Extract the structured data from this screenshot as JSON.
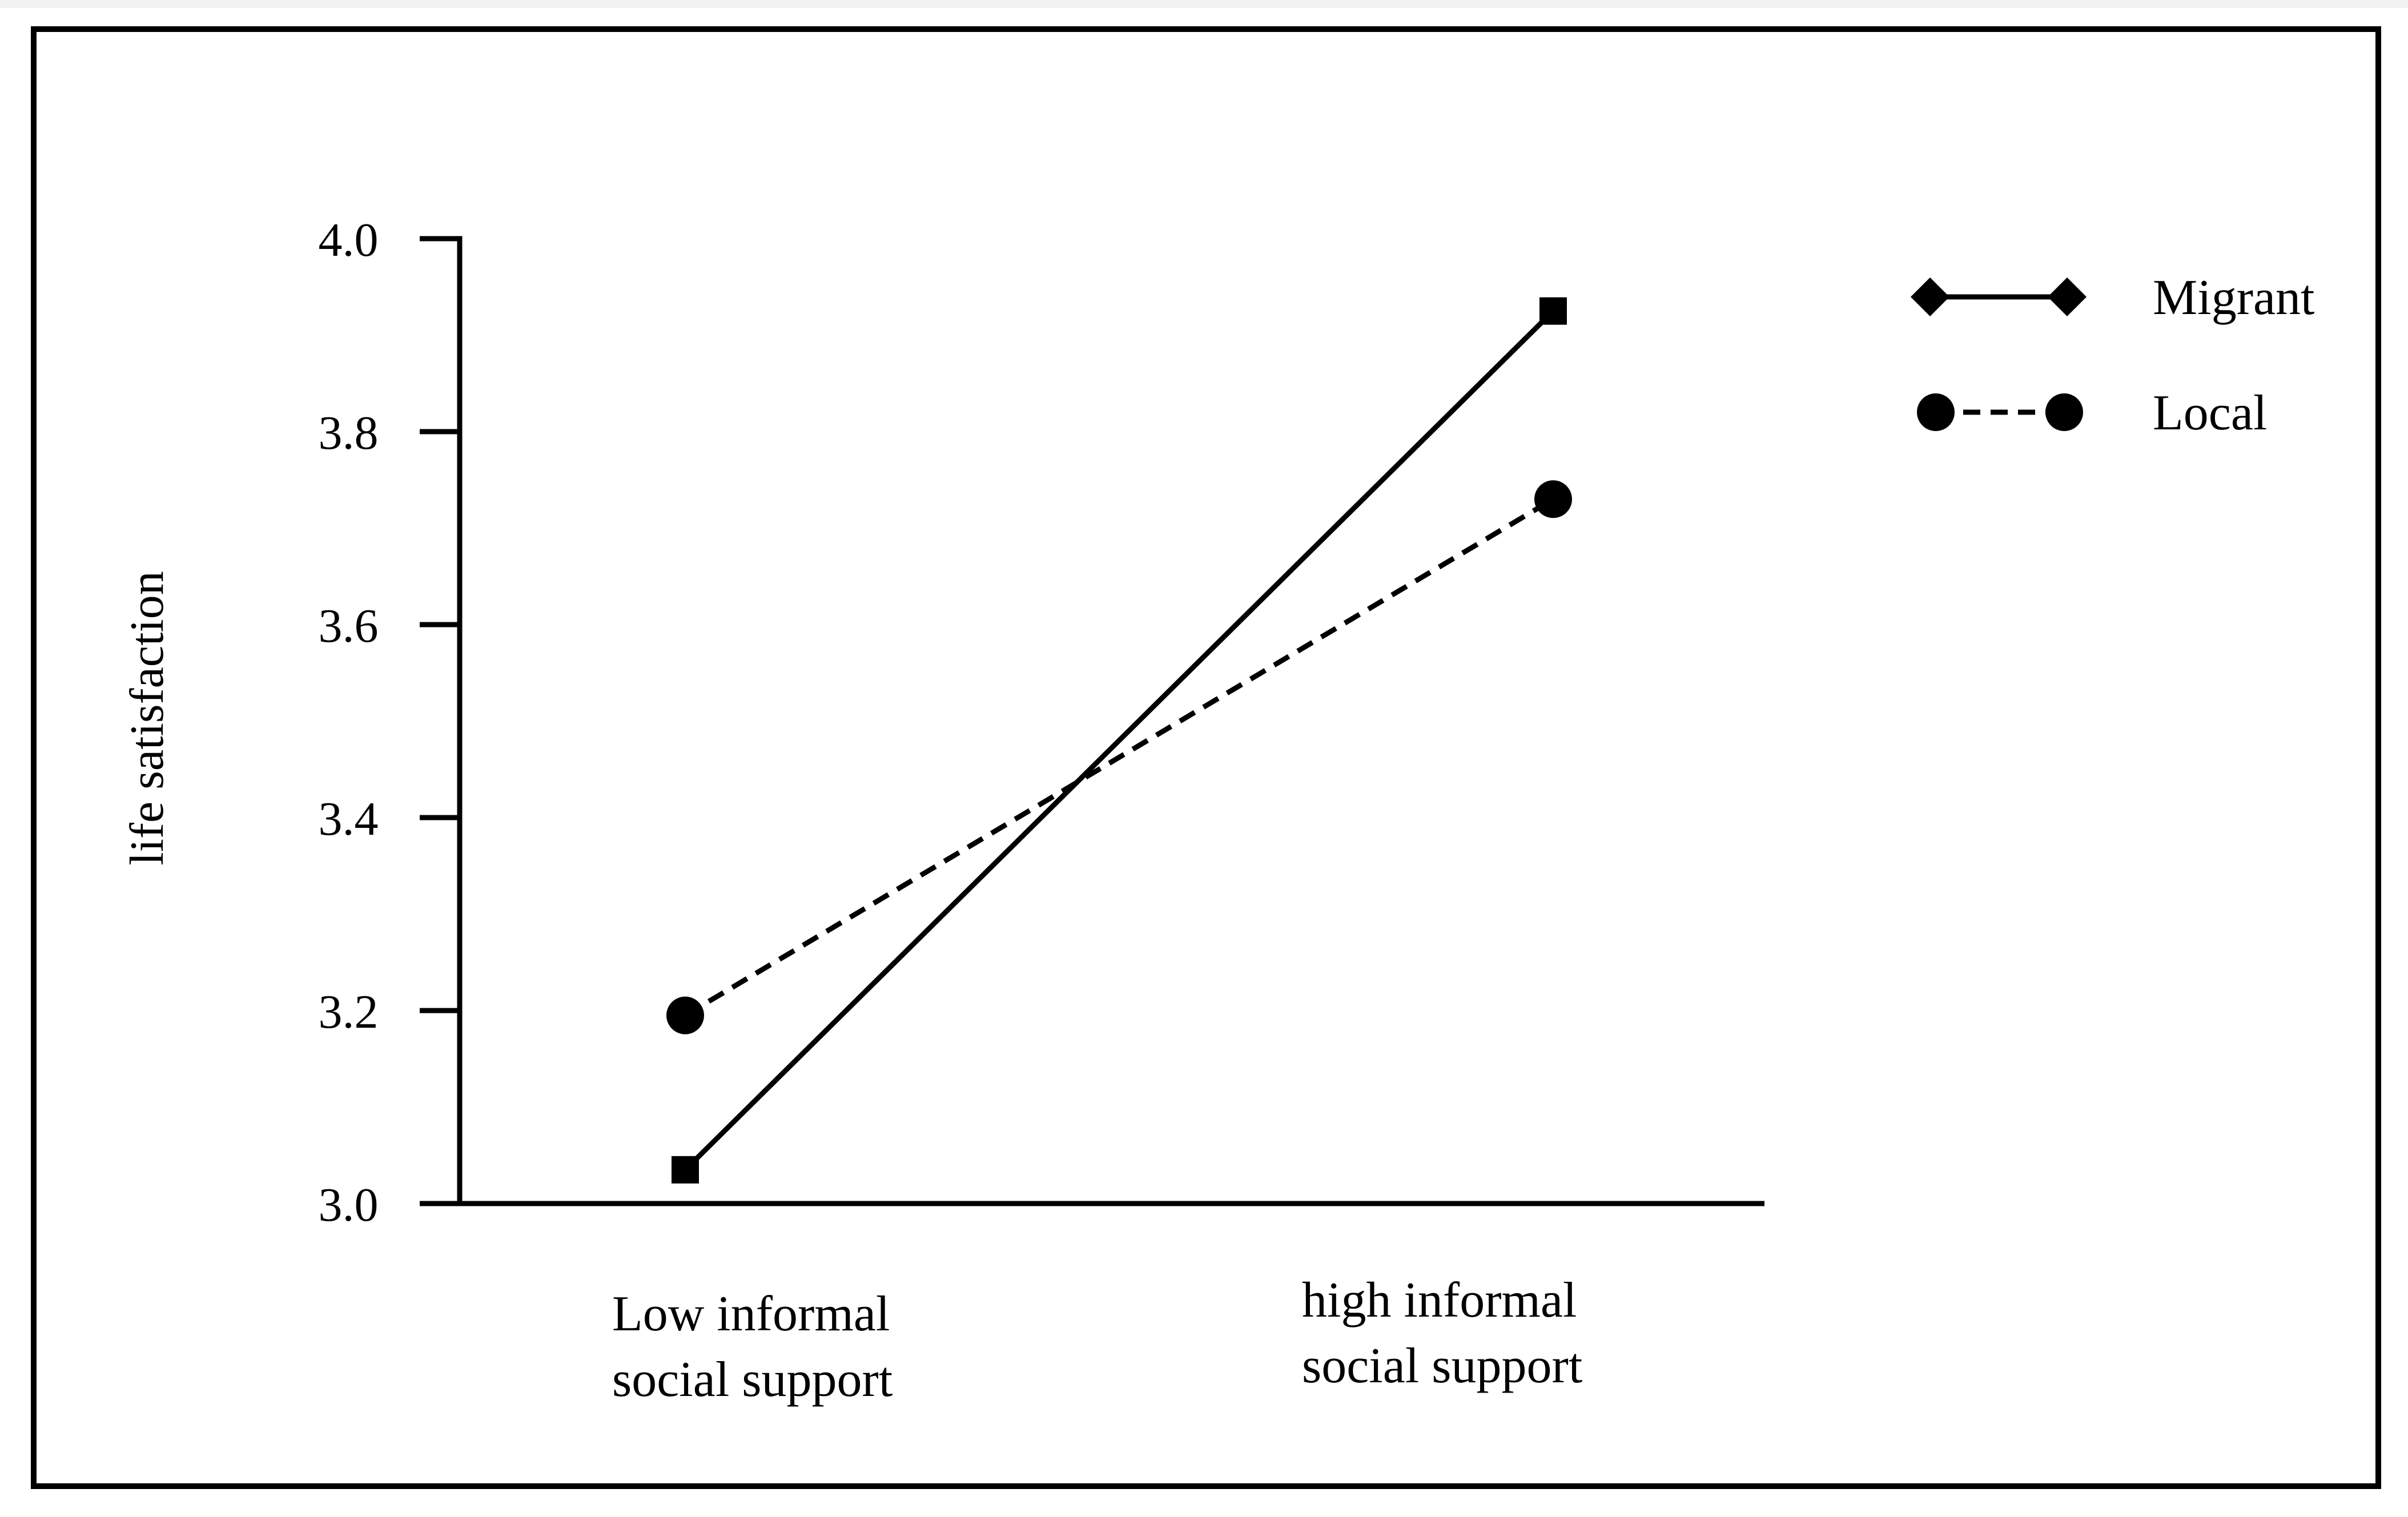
{
  "chart_data": {
    "type": "line",
    "xlabel": "",
    "ylabel": "life satisfaction",
    "categories": [
      [
        "Low informal",
        "social support"
      ],
      [
        "high informal",
        "social support"
      ]
    ],
    "ylim": [
      3.0,
      4.0
    ],
    "yticks": [
      "3.0",
      "3.2",
      "3.4",
      "3.6",
      "3.8",
      "4.0"
    ],
    "ytick_values": [
      3.0,
      3.2,
      3.4,
      3.6,
      3.8,
      4.0
    ],
    "grid": false,
    "legend_position": "top-right",
    "series": [
      {
        "name": "Migrant",
        "values": [
          3.035,
          3.925
        ],
        "marker": "square",
        "legend_marker": "diamond",
        "line_style": "solid",
        "color": "#000000"
      },
      {
        "name": "Local",
        "values": [
          3.195,
          3.73
        ],
        "marker": "circle",
        "legend_marker": "circle",
        "line_style": "dashed",
        "color": "#000000"
      }
    ]
  }
}
